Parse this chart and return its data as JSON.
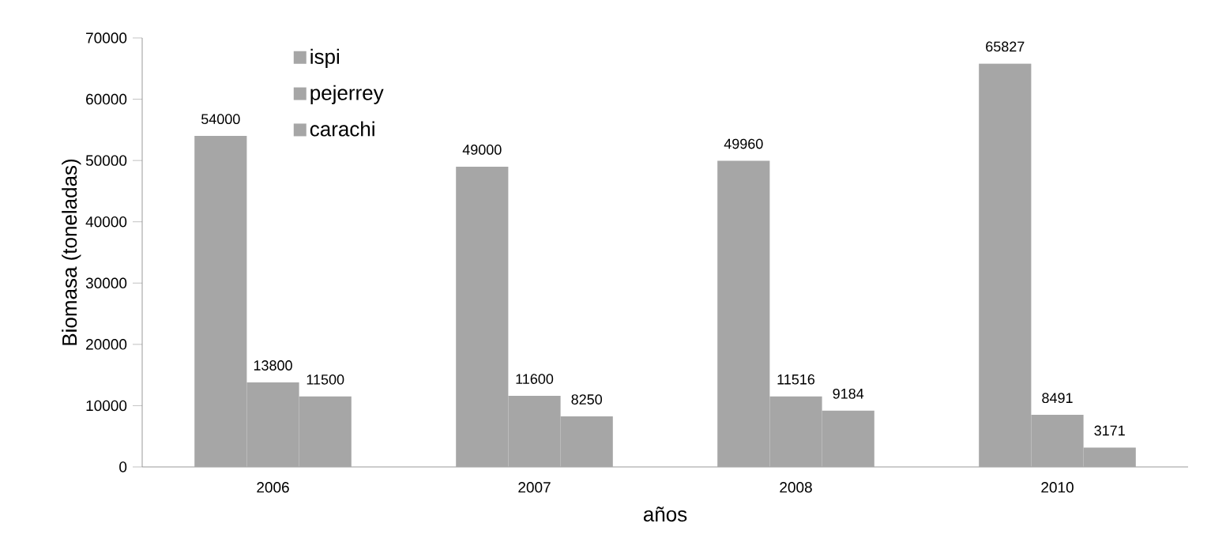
{
  "chart_data": {
    "type": "bar",
    "xlabel": "años",
    "ylabel": "Biomasa (toneladas)",
    "categories": [
      "2006",
      "2007",
      "2008",
      "2010"
    ],
    "series": [
      {
        "name": "ispi",
        "color": "#a6a6a6",
        "values": [
          54000,
          49000,
          49960,
          65827
        ]
      },
      {
        "name": "pejerrey",
        "color": "#a6a6a6",
        "values": [
          13800,
          11600,
          11516,
          8491
        ]
      },
      {
        "name": "carachi",
        "color": "#a6a6a6",
        "values": [
          11500,
          8250,
          9184,
          3171
        ]
      }
    ],
    "ylim": [
      0,
      70000
    ],
    "yticks": [
      0,
      10000,
      20000,
      30000,
      40000,
      50000,
      60000,
      70000
    ],
    "data_labels": true,
    "legend": "top left",
    "grid": false
  }
}
